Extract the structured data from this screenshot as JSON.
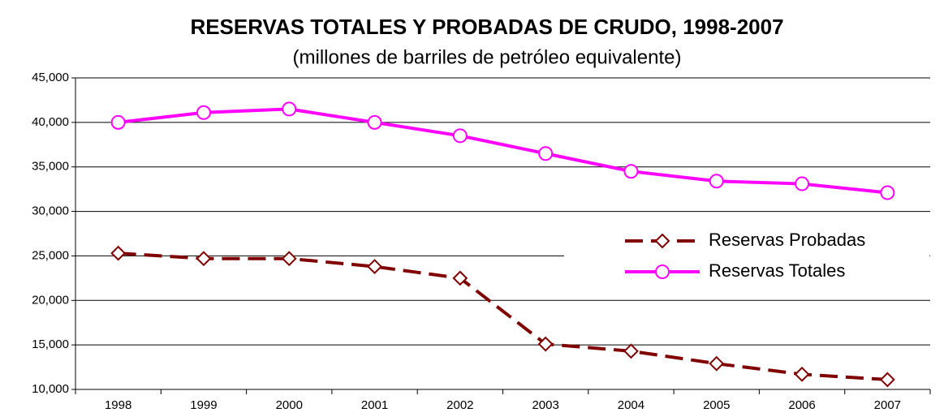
{
  "chart_data": {
    "type": "line",
    "title": "RESERVAS TOTALES Y PROBADAS DE CRUDO, 1998-2007",
    "subtitle": "(millones de barriles de petróleo equivalente)",
    "categories": [
      "1998",
      "1999",
      "2000",
      "2001",
      "2002",
      "2003",
      "2004",
      "2005",
      "2006",
      "2007"
    ],
    "series": [
      {
        "name": "Reservas Probadas",
        "color": "#800000",
        "dash": true,
        "marker": "diamond",
        "values": [
          25300,
          24700,
          24700,
          23800,
          22500,
          15100,
          14300,
          12900,
          11700,
          11100
        ]
      },
      {
        "name": "Reservas Totales",
        "color": "#ff00ff",
        "dash": false,
        "marker": "circle",
        "values": [
          40000,
          41100,
          41500,
          40000,
          38500,
          36500,
          34500,
          33400,
          33100,
          32100
        ]
      }
    ],
    "ylim": [
      10000,
      45000
    ],
    "yticks": [
      {
        "value": 10000,
        "label": "10,000"
      },
      {
        "value": 15000,
        "label": "15,000"
      },
      {
        "value": 20000,
        "label": "20,000"
      },
      {
        "value": 25000,
        "label": "25,000"
      },
      {
        "value": 30000,
        "label": "30,000"
      },
      {
        "value": 35000,
        "label": "35,000"
      },
      {
        "value": 40000,
        "label": "40,000"
      },
      {
        "value": 45000,
        "label": "45,000"
      }
    ],
    "grid": true,
    "legend": "right"
  }
}
